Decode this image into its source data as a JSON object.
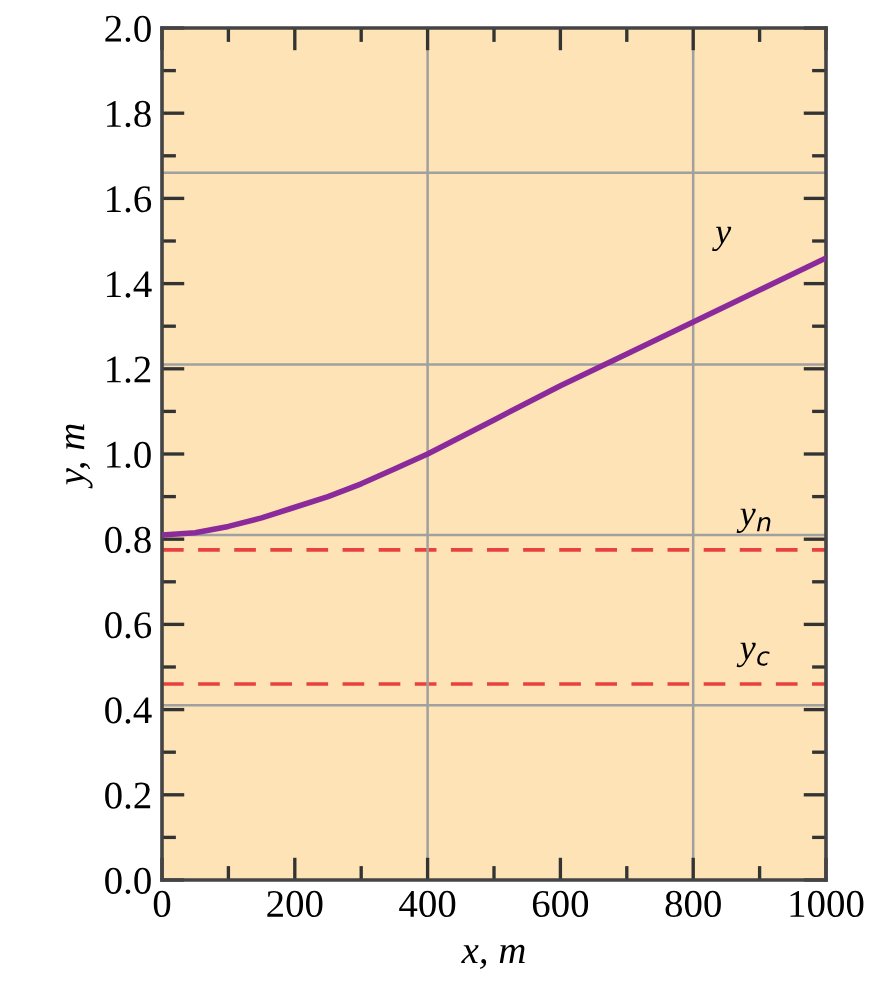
{
  "chart_data": {
    "type": "line",
    "xlabel": "x, m",
    "ylabel": "y, m",
    "x": [
      0,
      50,
      100,
      150,
      200,
      250,
      300,
      350,
      400,
      500,
      600,
      700,
      800,
      900,
      1000
    ],
    "series": [
      {
        "color": "#8b2a9a",
        "values": [
          0.81,
          0.815,
          0.83,
          0.85,
          0.875,
          0.9,
          0.93,
          0.965,
          1.0,
          1.08,
          1.16,
          1.235,
          1.31,
          1.385,
          1.46
        ]
      }
    ],
    "xlim": [
      0,
      1000
    ],
    "ylim": [
      0,
      2.0
    ],
    "xticks": [
      0,
      200,
      400,
      600,
      800,
      1000
    ],
    "yticks": [
      {
        "value": 0,
        "label": "0.0"
      },
      0.2,
      0.4,
      0.6,
      0.8,
      {
        "value": 1,
        "label": "1.0"
      },
      1.2,
      1.4,
      1.6,
      1.8,
      {
        "value": 2,
        "label": "2.0"
      }
    ],
    "ref_lines": [
      {
        "axis": "y",
        "value": 0.775,
        "color": "#e8423f",
        "line_style": "dashed",
        "label": "y$_{n}$"
      },
      {
        "axis": "y",
        "value": 0.46,
        "color": "#e8423f",
        "line_style": "dashed",
        "label": "y$_{c}$"
      },
      {
        "axis": "y",
        "value": 0.41,
        "color": "#a0a0a0",
        "line_style": "solid"
      },
      {
        "axis": "y",
        "value": 0.81,
        "color": "#a0a0a0",
        "line_style": "solid"
      },
      {
        "axis": "y",
        "value": 1.21,
        "color": "#a0a0a0",
        "line_style": "solid"
      },
      {
        "axis": "y",
        "value": 1.66,
        "color": "#a0a0a0",
        "line_style": "solid"
      },
      {
        "axis": "x",
        "value": 400,
        "color": "#a0a0a0",
        "line_style": "solid"
      },
      {
        "axis": "x",
        "value": 800,
        "color": "#a0a0a0",
        "line_style": "solid"
      }
    ],
    "annotations": [
      {
        "text": "y",
        "x": 900,
        "y": 1.385
      }
    ],
    "grid": false,
    "legend": false,
    "marker": "none",
    "line_style": "solid"
  }
}
